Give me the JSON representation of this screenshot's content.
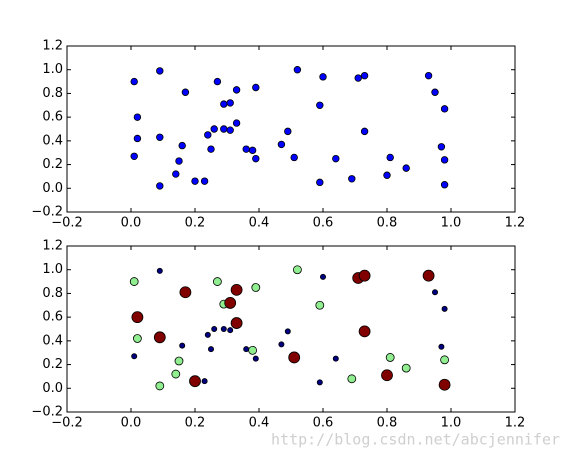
{
  "chart_data": [
    {
      "type": "scatter",
      "xlim": [
        -0.2,
        1.2
      ],
      "ylim": [
        -0.2,
        1.2
      ],
      "xticks": [
        {
          "value": -0.2,
          "label": "−0.2"
        },
        {
          "value": 0,
          "label": "0.0"
        },
        0.2,
        0.4,
        0.6,
        0.8,
        {
          "value": 1,
          "label": "1.0"
        },
        1.2
      ],
      "yticks": [
        {
          "value": -0.2,
          "label": "−0.2"
        },
        {
          "value": 0,
          "label": "0.0"
        },
        0.2,
        0.4,
        0.6,
        0.8,
        {
          "value": 1,
          "label": "1.0"
        },
        1.2
      ],
      "series": [
        {
          "color": "#0000ff",
          "x": [
            0.09,
            0.01,
            0.16,
            0.23,
            0.24,
            0.26,
            0.25,
            0.29,
            0.31,
            0.36,
            0.39,
            0.47,
            0.49,
            0.59,
            0.6,
            0.64,
            0.95,
            0.97,
            0.98,
            0.01,
            0.02,
            0.09,
            0.14,
            0.15,
            0.27,
            0.29,
            0.38,
            0.39,
            0.52,
            0.59,
            0.69,
            0.81,
            0.86,
            0.98,
            0.02,
            0.09,
            0.17,
            0.2,
            0.31,
            0.33,
            0.33,
            0.51,
            0.71,
            0.73,
            0.73,
            0.8,
            0.93,
            0.98
          ],
          "values": [
            0.99,
            0.27,
            0.36,
            0.06,
            0.45,
            0.5,
            0.33,
            0.5,
            0.49,
            0.33,
            0.25,
            0.37,
            0.48,
            0.05,
            0.94,
            0.25,
            0.81,
            0.35,
            0.67,
            0.9,
            0.42,
            0.02,
            0.12,
            0.23,
            0.9,
            0.71,
            0.32,
            0.85,
            1.0,
            0.7,
            0.08,
            0.26,
            0.17,
            0.24,
            0.6,
            0.43,
            0.81,
            0.06,
            0.72,
            0.83,
            0.55,
            0.26,
            0.93,
            0.95,
            0.48,
            0.11,
            0.95,
            0.03
          ]
        }
      ]
    },
    {
      "type": "scatter",
      "xlim": [
        -0.2,
        1.2
      ],
      "ylim": [
        -0.2,
        1.2
      ],
      "xticks": [
        {
          "value": -0.2,
          "label": "−0.2"
        },
        {
          "value": 0,
          "label": "0.0"
        },
        0.2,
        0.4,
        0.6,
        0.8,
        {
          "value": 1,
          "label": "1.0"
        },
        1.2
      ],
      "yticks": [
        {
          "value": -0.2,
          "label": "−0.2"
        },
        {
          "value": 0,
          "label": "0.0"
        },
        0.2,
        0.4,
        0.6,
        0.8,
        {
          "value": 1,
          "label": "1.0"
        },
        1.2
      ],
      "series": [
        {
          "color": "#000080",
          "x": [
            0.09,
            0.01,
            0.16,
            0.23,
            0.24,
            0.26,
            0.25,
            0.29,
            0.31,
            0.36,
            0.39,
            0.47,
            0.49,
            0.59,
            0.6,
            0.64,
            0.95,
            0.97,
            0.98
          ],
          "values": [
            0.99,
            0.27,
            0.36,
            0.06,
            0.45,
            0.5,
            0.33,
            0.5,
            0.49,
            0.33,
            0.25,
            0.37,
            0.48,
            0.05,
            0.94,
            0.25,
            0.81,
            0.35,
            0.67
          ]
        },
        {
          "color": "#90ee90",
          "x": [
            0.01,
            0.02,
            0.09,
            0.14,
            0.15,
            0.27,
            0.29,
            0.38,
            0.39,
            0.52,
            0.59,
            0.69,
            0.81,
            0.86,
            0.98
          ],
          "values": [
            0.9,
            0.42,
            0.02,
            0.12,
            0.23,
            0.9,
            0.71,
            0.32,
            0.85,
            1.0,
            0.7,
            0.08,
            0.26,
            0.17,
            0.24
          ]
        },
        {
          "color": "#800000",
          "x": [
            0.02,
            0.09,
            0.17,
            0.2,
            0.31,
            0.33,
            0.33,
            0.51,
            0.71,
            0.73,
            0.73,
            0.8,
            0.93,
            0.98
          ],
          "values": [
            0.6,
            0.43,
            0.81,
            0.06,
            0.72,
            0.83,
            0.55,
            0.26,
            0.93,
            0.95,
            0.48,
            0.11,
            0.95,
            0.03
          ]
        }
      ]
    }
  ],
  "watermark": "http://blog.csdn.net/abcjennifer"
}
